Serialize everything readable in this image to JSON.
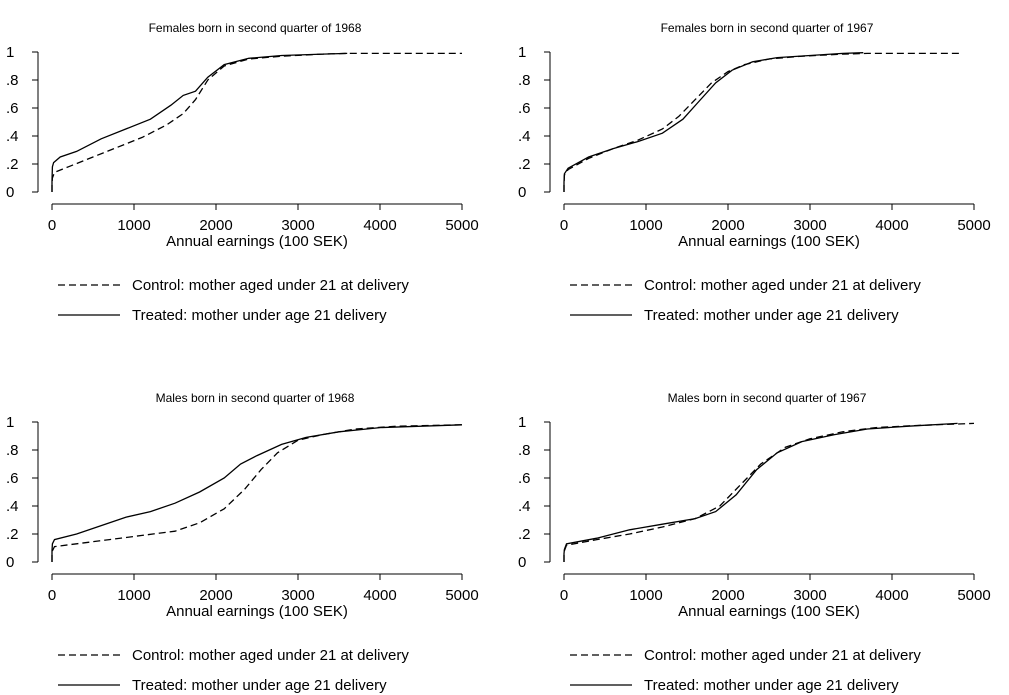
{
  "chart_data": [
    {
      "type": "line",
      "title": "Females born in second quarter of 1968",
      "xlabel": "Annual earnings (100 SEK)",
      "ylabel": "",
      "xlim": [
        0,
        5000
      ],
      "ylim": [
        0,
        1
      ],
      "x_ticks": [
        "0",
        "1000",
        "2000",
        "3000",
        "4000",
        "5000"
      ],
      "y_ticks": [
        "0",
        ".2",
        ".4",
        ".6",
        ".8",
        "1"
      ],
      "legend": "bottom",
      "grid": false,
      "series": [
        {
          "name": "Control: mother aged under 21 at delivery",
          "style": "dashed",
          "points": [
            [
              0,
              0
            ],
            [
              0,
              0.05
            ],
            [
              5,
              0.1
            ],
            [
              30,
              0.14
            ],
            [
              200,
              0.18
            ],
            [
              500,
              0.25
            ],
            [
              800,
              0.32
            ],
            [
              1100,
              0.39
            ],
            [
              1400,
              0.48
            ],
            [
              1600,
              0.56
            ],
            [
              1750,
              0.66
            ],
            [
              1900,
              0.8
            ],
            [
              2100,
              0.9
            ],
            [
              2400,
              0.95
            ],
            [
              2800,
              0.97
            ],
            [
              3300,
              0.985
            ],
            [
              3600,
              0.99
            ],
            [
              5000,
              0.99
            ]
          ]
        },
        {
          "name": "Treated: mother under age 21 delivery",
          "style": "solid",
          "points": [
            [
              0,
              0
            ],
            [
              0,
              0.08
            ],
            [
              5,
              0.18
            ],
            [
              20,
              0.21
            ],
            [
              100,
              0.25
            ],
            [
              300,
              0.29
            ],
            [
              600,
              0.38
            ],
            [
              900,
              0.45
            ],
            [
              1200,
              0.52
            ],
            [
              1450,
              0.62
            ],
            [
              1600,
              0.69
            ],
            [
              1750,
              0.72
            ],
            [
              1900,
              0.82
            ],
            [
              2100,
              0.91
            ],
            [
              2400,
              0.955
            ],
            [
              2800,
              0.975
            ],
            [
              3300,
              0.985
            ],
            [
              3600,
              0.99
            ]
          ]
        }
      ]
    },
    {
      "type": "line",
      "title": "Females born in second quarter of 1967",
      "xlabel": "Annual earnings (100 SEK)",
      "ylabel": "",
      "xlim": [
        0,
        5000
      ],
      "ylim": [
        0,
        1
      ],
      "x_ticks": [
        "0",
        "1000",
        "2000",
        "3000",
        "4000",
        "5000"
      ],
      "y_ticks": [
        "0",
        ".2",
        ".4",
        ".6",
        ".8",
        "1"
      ],
      "legend": "bottom",
      "grid": false,
      "series": [
        {
          "name": "Control: mother aged under 21 at delivery",
          "style": "dashed",
          "points": [
            [
              0,
              0
            ],
            [
              0,
              0.06
            ],
            [
              5,
              0.12
            ],
            [
              50,
              0.16
            ],
            [
              300,
              0.24
            ],
            [
              600,
              0.31
            ],
            [
              900,
              0.37
            ],
            [
              1200,
              0.45
            ],
            [
              1400,
              0.54
            ],
            [
              1600,
              0.66
            ],
            [
              1800,
              0.78
            ],
            [
              2000,
              0.86
            ],
            [
              2200,
              0.91
            ],
            [
              2500,
              0.95
            ],
            [
              2900,
              0.97
            ],
            [
              3400,
              0.985
            ],
            [
              3700,
              0.99
            ],
            [
              4850,
              0.99
            ]
          ]
        },
        {
          "name": "Treated: mother under age 21 delivery",
          "style": "solid",
          "points": [
            [
              0,
              0
            ],
            [
              0,
              0.07
            ],
            [
              5,
              0.13
            ],
            [
              50,
              0.17
            ],
            [
              300,
              0.25
            ],
            [
              600,
              0.31
            ],
            [
              900,
              0.36
            ],
            [
              1200,
              0.42
            ],
            [
              1450,
              0.52
            ],
            [
              1650,
              0.65
            ],
            [
              1850,
              0.78
            ],
            [
              2050,
              0.87
            ],
            [
              2300,
              0.93
            ],
            [
              2600,
              0.96
            ],
            [
              3000,
              0.975
            ],
            [
              3400,
              0.99
            ],
            [
              3650,
              0.995
            ]
          ]
        }
      ]
    },
    {
      "type": "line",
      "title": "Males born in second quarter of 1968",
      "xlabel": "Annual earnings (100 SEK)",
      "ylabel": "",
      "xlim": [
        0,
        5000
      ],
      "ylim": [
        0,
        1
      ],
      "x_ticks": [
        "0",
        "1000",
        "2000",
        "3000",
        "4000",
        "5000"
      ],
      "y_ticks": [
        "0",
        ".2",
        ".4",
        ".6",
        ".8",
        "1"
      ],
      "legend": "bottom",
      "grid": false,
      "series": [
        {
          "name": "Control: mother aged under 21 at delivery",
          "style": "dashed",
          "points": [
            [
              0,
              0
            ],
            [
              0,
              0.05
            ],
            [
              5,
              0.08
            ],
            [
              30,
              0.11
            ],
            [
              300,
              0.13
            ],
            [
              700,
              0.16
            ],
            [
              1100,
              0.19
            ],
            [
              1500,
              0.22
            ],
            [
              1800,
              0.28
            ],
            [
              2100,
              0.38
            ],
            [
              2350,
              0.52
            ],
            [
              2550,
              0.66
            ],
            [
              2750,
              0.78
            ],
            [
              3000,
              0.87
            ],
            [
              3300,
              0.91
            ],
            [
              3700,
              0.95
            ],
            [
              4200,
              0.97
            ],
            [
              5000,
              0.98
            ]
          ]
        },
        {
          "name": "Treated: mother under age 21 delivery",
          "style": "solid",
          "points": [
            [
              0,
              0
            ],
            [
              0,
              0.08
            ],
            [
              5,
              0.13
            ],
            [
              30,
              0.16
            ],
            [
              300,
              0.2
            ],
            [
              600,
              0.26
            ],
            [
              900,
              0.32
            ],
            [
              1200,
              0.36
            ],
            [
              1500,
              0.42
            ],
            [
              1800,
              0.5
            ],
            [
              2100,
              0.6
            ],
            [
              2300,
              0.7
            ],
            [
              2500,
              0.76
            ],
            [
              2800,
              0.84
            ],
            [
              3100,
              0.89
            ],
            [
              3500,
              0.93
            ],
            [
              4000,
              0.96
            ],
            [
              5000,
              0.98
            ]
          ]
        }
      ]
    },
    {
      "type": "line",
      "title": "Males born in second quarter of 1967",
      "xlabel": "Annual earnings (100 SEK)",
      "ylabel": "",
      "xlim": [
        0,
        5000
      ],
      "ylim": [
        0,
        1
      ],
      "x_ticks": [
        "0",
        "1000",
        "2000",
        "3000",
        "4000",
        "5000"
      ],
      "y_ticks": [
        "0",
        ".2",
        ".4",
        ".6",
        ".8",
        "1"
      ],
      "legend": "bottom",
      "grid": false,
      "series": [
        {
          "name": "Control: mother aged under 21 at delivery",
          "style": "dashed",
          "points": [
            [
              0,
              0
            ],
            [
              0,
              0.05
            ],
            [
              5,
              0.08
            ],
            [
              30,
              0.12
            ],
            [
              400,
              0.16
            ],
            [
              800,
              0.2
            ],
            [
              1200,
              0.25
            ],
            [
              1600,
              0.31
            ],
            [
              1900,
              0.4
            ],
            [
              2150,
              0.55
            ],
            [
              2400,
              0.7
            ],
            [
              2700,
              0.82
            ],
            [
              3000,
              0.88
            ],
            [
              3400,
              0.93
            ],
            [
              3800,
              0.96
            ],
            [
              4300,
              0.975
            ],
            [
              5000,
              0.99
            ]
          ]
        },
        {
          "name": "Treated: mother under age 21 delivery",
          "style": "solid",
          "points": [
            [
              0,
              0
            ],
            [
              0,
              0.06
            ],
            [
              5,
              0.09
            ],
            [
              30,
              0.13
            ],
            [
              400,
              0.17
            ],
            [
              800,
              0.23
            ],
            [
              1200,
              0.27
            ],
            [
              1600,
              0.31
            ],
            [
              1850,
              0.36
            ],
            [
              2100,
              0.48
            ],
            [
              2350,
              0.66
            ],
            [
              2600,
              0.78
            ],
            [
              2900,
              0.86
            ],
            [
              3300,
              0.91
            ],
            [
              3700,
              0.95
            ],
            [
              4200,
              0.97
            ],
            [
              4800,
              0.99
            ]
          ]
        }
      ]
    }
  ]
}
